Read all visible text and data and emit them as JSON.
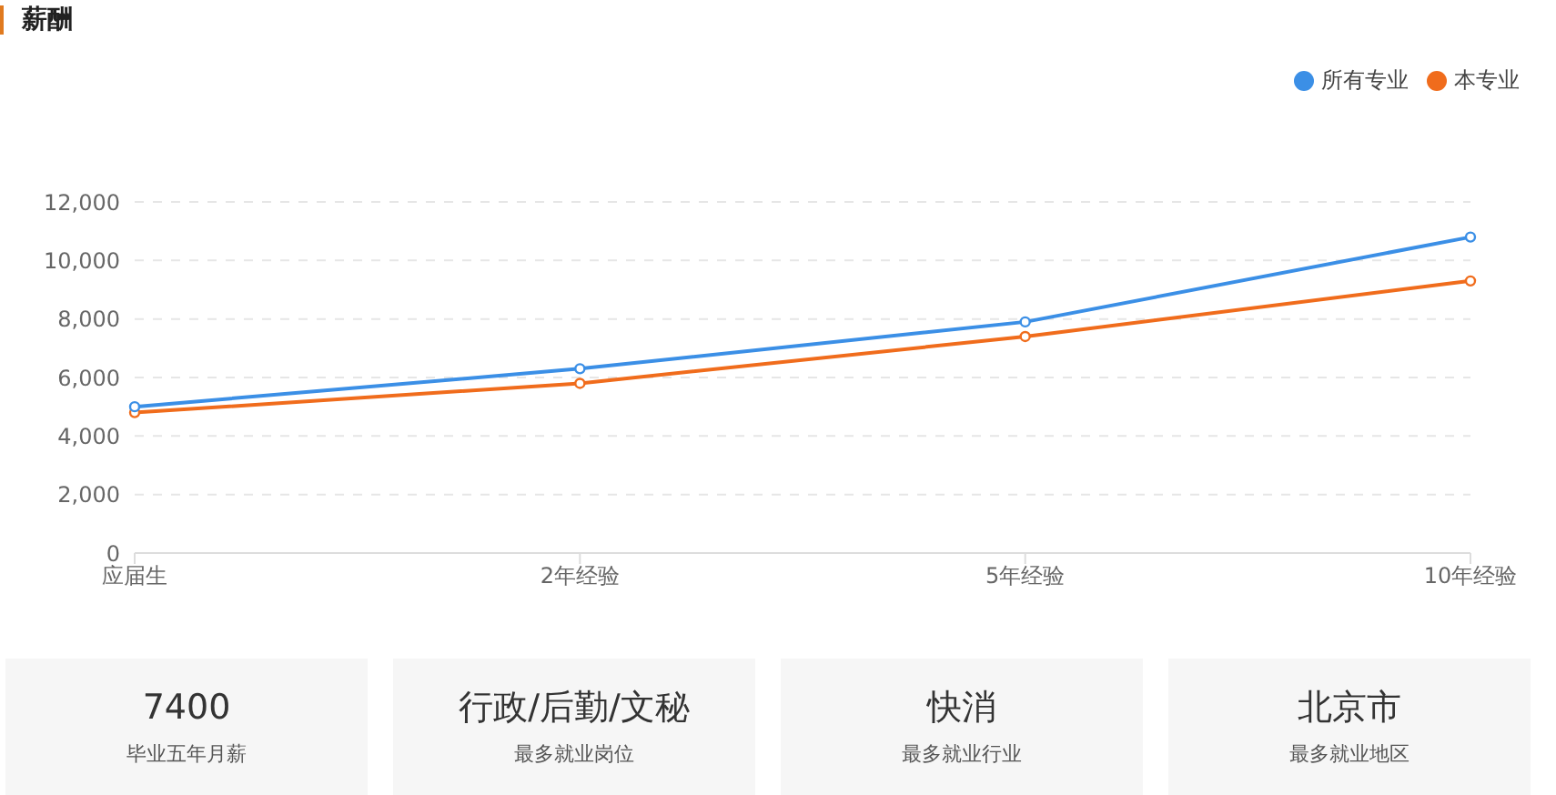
{
  "chart_data": [
    {
      "type": "line",
      "title": "薪酬",
      "categories": [
        "应届生",
        "2年经验",
        "5年经验",
        "10年经验"
      ],
      "series": [
        {
          "name": "本专业",
          "color": "#f06c1c",
          "values": [
            4800,
            5800,
            7400,
            9300
          ]
        },
        {
          "name": "所有专业",
          "color": "#3b8fe6",
          "values": [
            5000,
            6300,
            7900,
            10800
          ]
        }
      ],
      "ylim": [
        0,
        12000
      ],
      "yticks": [
        0,
        {
          "value": 2000,
          "label": "2,000"
        },
        {
          "value": 4000,
          "label": "4,000"
        },
        {
          "value": 6000,
          "label": "6,000"
        },
        {
          "value": 8000,
          "label": "8,000"
        },
        {
          "value": 10000,
          "label": "10,000"
        },
        {
          "value": 12000,
          "label": "12,000"
        }
      ],
      "grid": "y",
      "legend": "top right",
      "marker": "circle",
      "line_style": "solid"
    },
    {
      "type": "other",
      "annotations": [
        "7400",
        "毕业五年月薪",
        "行政/后勤/文秘",
        "最多就业岗位",
        "快消",
        "最多就业行业",
        "北京市",
        "最多就业地区"
      ]
    }
  ]
}
